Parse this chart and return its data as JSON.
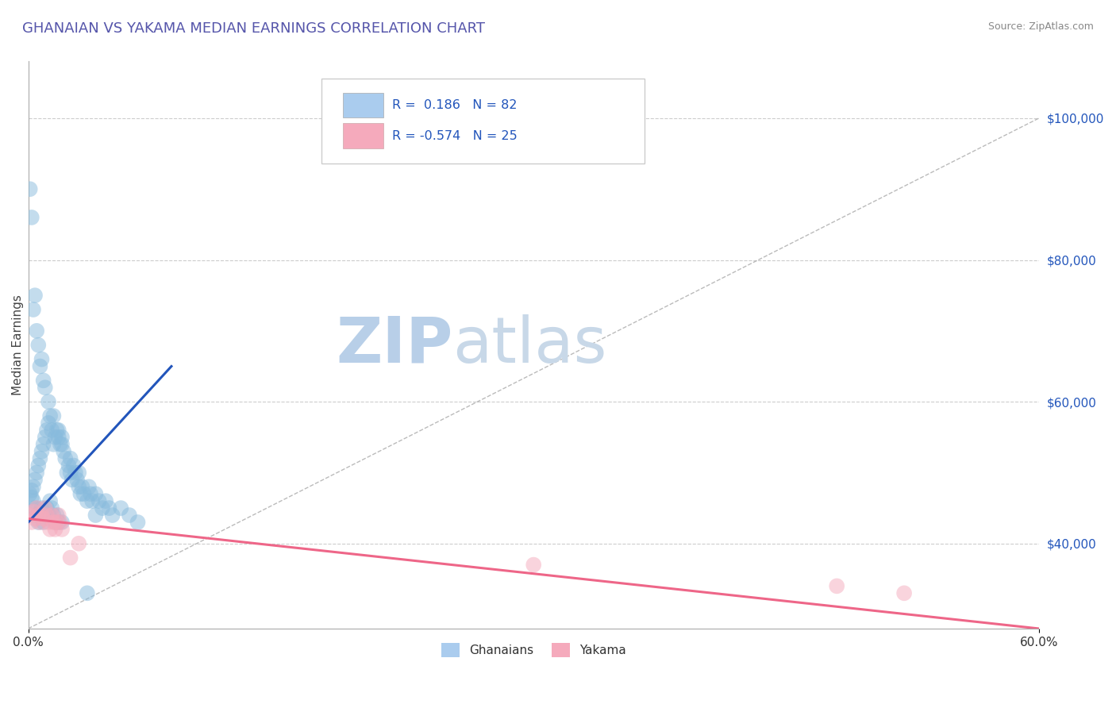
{
  "title": "GHANAIAN VS YAKAMA MEDIAN EARNINGS CORRELATION CHART",
  "source_text": "Source: ZipAtlas.com",
  "ylabel": "Median Earnings",
  "xlim": [
    0.0,
    0.6
  ],
  "ylim": [
    28000,
    108000
  ],
  "yticks": [
    40000,
    60000,
    80000,
    100000
  ],
  "ytick_labels": [
    "$40,000",
    "$60,000",
    "$80,000",
    "$100,000"
  ],
  "xtick_labels": [
    "0.0%",
    "60.0%"
  ],
  "title_color": "#5555aa",
  "title_fontsize": 13,
  "background_color": "#ffffff",
  "grid_color": "#cccccc",
  "watermark_zip": "ZIP",
  "watermark_atlas": "atlas",
  "watermark_color_zip": "#b8cfe8",
  "watermark_color_atlas": "#c8d8e8",
  "legend_R1": " 0.186",
  "legend_N1": "82",
  "legend_R2": "-0.574",
  "legend_N2": "25",
  "legend_color1": "#aaccee",
  "legend_color2": "#f5aabc",
  "dot_color_blue": "#88bbdd",
  "dot_color_pink": "#f5aabc",
  "line_color_blue": "#2255bb",
  "line_color_pink": "#ee6688",
  "ref_line_color": "#aaaaaa",
  "blue_line_x0": 0.0,
  "blue_line_y0": 43000,
  "blue_line_x1": 0.085,
  "blue_line_y1": 65000,
  "pink_line_x0": 0.0,
  "pink_line_y0": 43500,
  "pink_line_x1": 0.6,
  "pink_line_y1": 28000,
  "ref_line_x0": 0.0,
  "ref_line_y0": 28000,
  "ref_line_x1": 0.6,
  "ref_line_y1": 100000,
  "ghanaian_x": [
    0.001,
    0.002,
    0.002,
    0.003,
    0.003,
    0.004,
    0.004,
    0.005,
    0.005,
    0.006,
    0.006,
    0.007,
    0.007,
    0.008,
    0.008,
    0.009,
    0.009,
    0.01,
    0.01,
    0.011,
    0.011,
    0.012,
    0.012,
    0.013,
    0.013,
    0.014,
    0.014,
    0.015,
    0.015,
    0.016,
    0.016,
    0.017,
    0.017,
    0.018,
    0.018,
    0.019,
    0.02,
    0.02,
    0.021,
    0.022,
    0.023,
    0.024,
    0.025,
    0.026,
    0.027,
    0.028,
    0.029,
    0.03,
    0.031,
    0.032,
    0.033,
    0.035,
    0.036,
    0.037,
    0.038,
    0.04,
    0.042,
    0.044,
    0.046,
    0.048,
    0.05,
    0.055,
    0.06,
    0.065,
    0.001,
    0.002,
    0.003,
    0.004,
    0.005,
    0.006,
    0.007,
    0.008,
    0.009,
    0.01,
    0.012,
    0.015,
    0.018,
    0.02,
    0.025,
    0.03,
    0.035,
    0.04
  ],
  "ghanaian_y": [
    47000,
    47500,
    46500,
    48000,
    46000,
    49000,
    45000,
    50000,
    44000,
    51000,
    43000,
    52000,
    44000,
    53000,
    45000,
    54000,
    43000,
    55000,
    44000,
    56000,
    45000,
    57000,
    44000,
    58000,
    46000,
    56000,
    45000,
    54000,
    44000,
    55000,
    43000,
    56000,
    44000,
    55000,
    43000,
    54000,
    55000,
    43000,
    53000,
    52000,
    50000,
    51000,
    50000,
    49000,
    51000,
    50000,
    49000,
    48000,
    47000,
    48000,
    47000,
    46000,
    48000,
    47000,
    46000,
    47000,
    46000,
    45000,
    46000,
    45000,
    44000,
    45000,
    44000,
    43000,
    90000,
    86000,
    73000,
    75000,
    70000,
    68000,
    65000,
    66000,
    63000,
    62000,
    60000,
    58000,
    56000,
    54000,
    52000,
    50000,
    33000,
    44000
  ],
  "yakama_x": [
    0.001,
    0.002,
    0.003,
    0.004,
    0.005,
    0.006,
    0.007,
    0.008,
    0.009,
    0.01,
    0.011,
    0.012,
    0.013,
    0.014,
    0.015,
    0.016,
    0.017,
    0.018,
    0.019,
    0.02,
    0.025,
    0.03,
    0.52,
    0.48,
    0.3
  ],
  "yakama_y": [
    44000,
    43000,
    44500,
    43500,
    45000,
    44000,
    43000,
    44000,
    43500,
    45000,
    44000,
    43000,
    42000,
    44000,
    43000,
    42000,
    43000,
    44000,
    43000,
    42000,
    38000,
    40000,
    33000,
    34000,
    37000
  ]
}
